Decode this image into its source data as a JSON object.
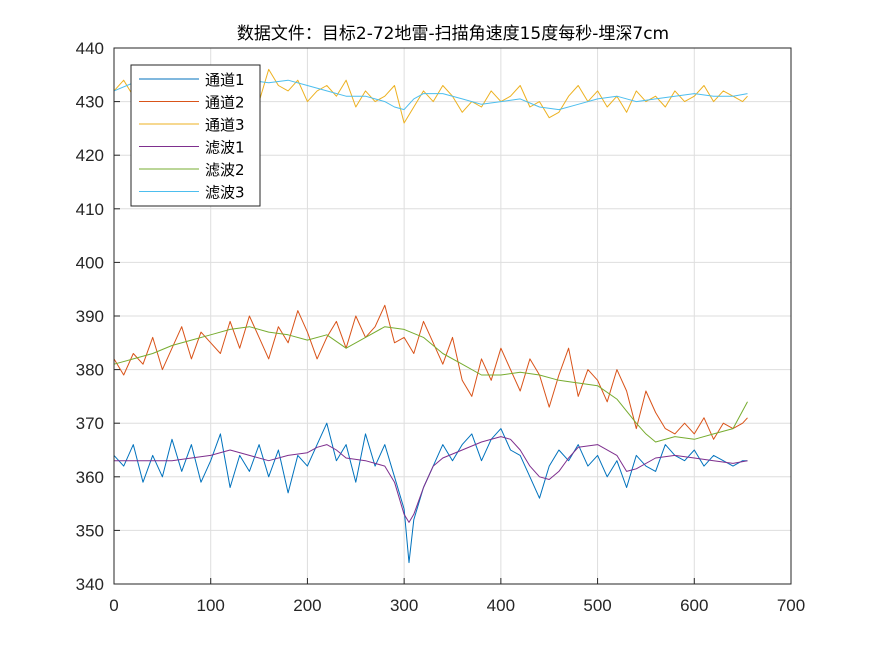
{
  "chart_data": {
    "type": "line",
    "title": "数据文件：目标2-72地雷-扫描角速度15度每秒-埋深7cm",
    "xlabel": "",
    "ylabel": "",
    "xlim": [
      0,
      700
    ],
    "ylim": [
      340,
      440
    ],
    "xticks": [
      0,
      100,
      200,
      300,
      400,
      500,
      600,
      700
    ],
    "yticks": [
      340,
      350,
      360,
      370,
      380,
      390,
      400,
      410,
      420,
      430,
      440
    ],
    "grid": true,
    "legend_position": "top-left",
    "series": [
      {
        "name": "通道1",
        "color": "#0072BD",
        "x": [
          0,
          10,
          20,
          30,
          40,
          50,
          60,
          70,
          80,
          90,
          100,
          110,
          120,
          130,
          140,
          150,
          160,
          170,
          180,
          190,
          200,
          210,
          220,
          230,
          240,
          250,
          260,
          270,
          280,
          290,
          300,
          305,
          310,
          320,
          330,
          340,
          350,
          360,
          370,
          380,
          390,
          400,
          410,
          420,
          430,
          440,
          450,
          460,
          470,
          480,
          490,
          500,
          510,
          520,
          530,
          540,
          550,
          560,
          570,
          580,
          590,
          600,
          610,
          620,
          630,
          640,
          650,
          655
        ],
        "y": [
          364,
          362,
          366,
          359,
          364,
          360,
          367,
          361,
          366,
          359,
          363,
          368,
          358,
          364,
          361,
          366,
          360,
          365,
          357,
          364,
          362,
          366,
          370,
          363,
          366,
          359,
          368,
          362,
          366,
          360,
          354,
          344,
          352,
          358,
          362,
          366,
          363,
          366,
          368,
          363,
          367,
          369,
          365,
          364,
          360,
          356,
          362,
          365,
          363,
          366,
          362,
          364,
          360,
          363,
          358,
          364,
          362,
          361,
          366,
          364,
          363,
          365,
          362,
          364,
          363,
          362,
          363,
          363
        ]
      },
      {
        "name": "通道2",
        "color": "#D95319",
        "x": [
          0,
          10,
          20,
          30,
          40,
          50,
          60,
          70,
          80,
          90,
          100,
          110,
          120,
          130,
          140,
          150,
          160,
          170,
          180,
          190,
          200,
          210,
          220,
          230,
          240,
          250,
          260,
          270,
          280,
          290,
          300,
          310,
          320,
          330,
          340,
          350,
          360,
          370,
          380,
          390,
          400,
          410,
          420,
          430,
          440,
          450,
          460,
          470,
          480,
          490,
          500,
          510,
          520,
          530,
          540,
          550,
          560,
          570,
          580,
          590,
          600,
          610,
          620,
          630,
          640,
          650,
          655
        ],
        "y": [
          382,
          379,
          383,
          381,
          386,
          380,
          384,
          388,
          382,
          387,
          385,
          383,
          389,
          384,
          390,
          386,
          382,
          388,
          385,
          391,
          387,
          382,
          386,
          389,
          384,
          390,
          386,
          388,
          392,
          385,
          386,
          383,
          389,
          385,
          381,
          386,
          378,
          375,
          382,
          378,
          384,
          380,
          376,
          382,
          379,
          373,
          379,
          384,
          375,
          380,
          378,
          374,
          380,
          376,
          369,
          376,
          372,
          369,
          368,
          370,
          368,
          371,
          367,
          370,
          369,
          370,
          371
        ]
      },
      {
        "name": "通道3",
        "color": "#EDB120",
        "x": [
          0,
          10,
          20,
          30,
          40,
          50,
          60,
          70,
          80,
          90,
          100,
          110,
          120,
          130,
          140,
          150,
          160,
          170,
          180,
          190,
          200,
          210,
          220,
          230,
          240,
          250,
          260,
          270,
          280,
          290,
          300,
          310,
          320,
          330,
          340,
          350,
          360,
          370,
          380,
          390,
          400,
          410,
          420,
          430,
          440,
          450,
          460,
          470,
          480,
          490,
          500,
          510,
          520,
          530,
          540,
          550,
          560,
          570,
          580,
          590,
          600,
          610,
          620,
          630,
          640,
          650,
          655
        ],
        "y": [
          432,
          434,
          431,
          433,
          435,
          430,
          432,
          436,
          433,
          431,
          434,
          432,
          435,
          431,
          434,
          430,
          436,
          433,
          432,
          434,
          430,
          432,
          433,
          431,
          434,
          429,
          432,
          430,
          431,
          433,
          426,
          429,
          432,
          430,
          433,
          431,
          428,
          430,
          429,
          432,
          430,
          431,
          433,
          429,
          430,
          427,
          428,
          431,
          433,
          430,
          432,
          429,
          431,
          428,
          432,
          430,
          431,
          429,
          432,
          430,
          431,
          433,
          430,
          432,
          431,
          430,
          431
        ]
      },
      {
        "name": "滤波1",
        "color": "#7E2F8E",
        "x": [
          0,
          20,
          40,
          60,
          80,
          100,
          120,
          140,
          160,
          180,
          200,
          210,
          220,
          230,
          240,
          260,
          280,
          290,
          300,
          305,
          310,
          320,
          330,
          340,
          360,
          380,
          400,
          410,
          420,
          430,
          440,
          450,
          460,
          470,
          480,
          500,
          520,
          530,
          540,
          560,
          580,
          600,
          620,
          640,
          655
        ],
        "y": [
          363,
          363,
          363,
          363,
          363.5,
          364,
          365,
          364,
          363,
          364,
          364.5,
          365.5,
          366,
          365,
          363.5,
          363,
          362,
          359,
          353,
          351.5,
          353,
          358,
          362,
          363.5,
          365,
          366.5,
          367.5,
          367,
          365,
          362,
          360,
          359.5,
          361,
          363.5,
          365.5,
          366,
          364,
          361,
          361.5,
          363.5,
          364,
          363.5,
          363,
          362.5,
          363
        ]
      },
      {
        "name": "滤波2",
        "color": "#77AC30",
        "x": [
          0,
          20,
          40,
          60,
          80,
          100,
          120,
          140,
          160,
          180,
          200,
          220,
          240,
          260,
          280,
          300,
          320,
          340,
          360,
          380,
          400,
          420,
          440,
          460,
          480,
          500,
          520,
          540,
          550,
          560,
          580,
          600,
          620,
          640,
          655
        ],
        "y": [
          381,
          382,
          383,
          384.5,
          385.5,
          386.5,
          387.5,
          388,
          387,
          386.5,
          385.5,
          386.5,
          384,
          386,
          388,
          387.5,
          386,
          383,
          381,
          379,
          379,
          379.5,
          379,
          378,
          377.5,
          377,
          374.5,
          370,
          368,
          366.5,
          367.5,
          367,
          368,
          369,
          374
        ]
      },
      {
        "name": "滤波3",
        "color": "#4DBEEE",
        "x": [
          0,
          20,
          40,
          60,
          80,
          100,
          120,
          140,
          160,
          180,
          200,
          220,
          240,
          260,
          280,
          290,
          300,
          310,
          320,
          340,
          360,
          380,
          400,
          420,
          440,
          460,
          480,
          500,
          520,
          540,
          560,
          580,
          600,
          620,
          640,
          655
        ],
        "y": [
          432,
          433.5,
          433,
          432,
          433,
          434,
          434.5,
          434,
          433.5,
          434,
          433,
          432,
          431,
          431,
          430,
          429,
          428.5,
          430.5,
          431.5,
          431.5,
          430.5,
          429.5,
          430,
          430.5,
          429,
          428.5,
          429.5,
          430.5,
          431,
          430,
          430.5,
          431,
          431.5,
          431,
          431,
          431.5
        ]
      }
    ]
  }
}
